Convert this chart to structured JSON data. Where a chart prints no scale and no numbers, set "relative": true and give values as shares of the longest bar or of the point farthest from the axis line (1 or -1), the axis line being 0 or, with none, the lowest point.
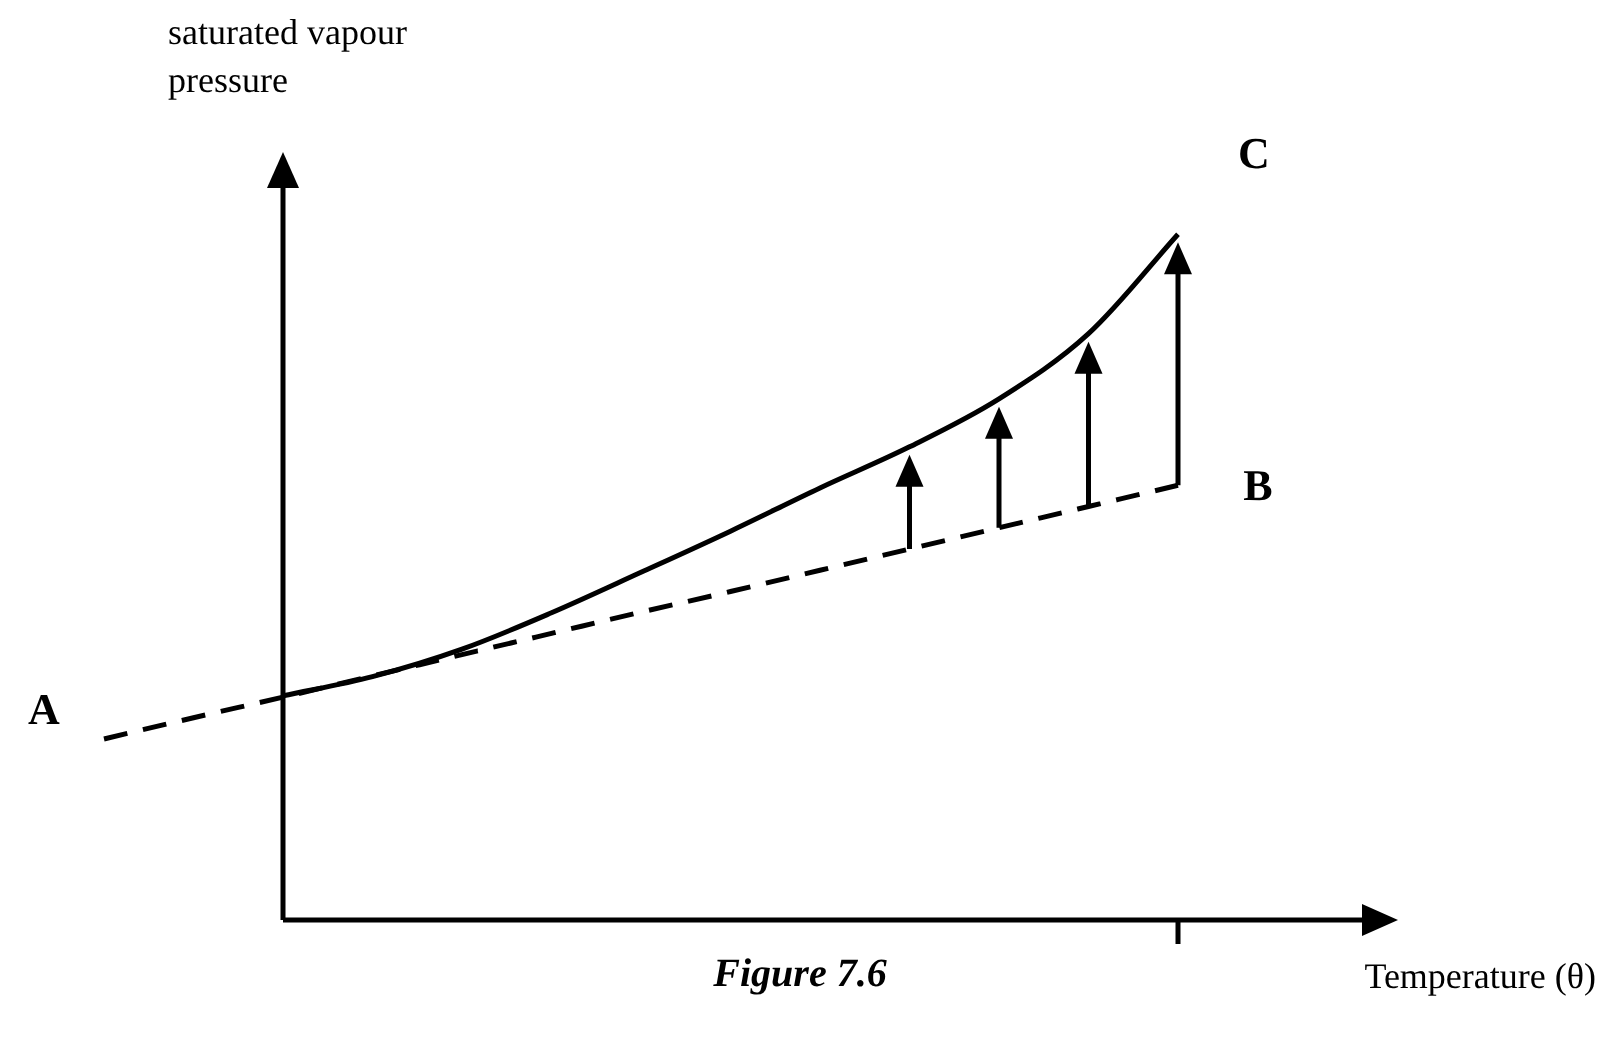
{
  "chart_data": {
    "type": "line",
    "title": "Figure 7.6",
    "xlabel": "Temperature (θ)",
    "ylabel": "saturated vapour pressure",
    "relative": true,
    "categories": [
      null,
      null,
      null,
      null,
      null,
      null,
      null,
      null,
      null,
      null,
      null,
      null,
      null
    ],
    "series": [
      {
        "color": "#000000",
        "line_style": "dashed",
        "values": [
          0.264,
          0.295,
          0.325,
          0.356,
          0.387,
          0.418,
          0.449,
          0.479,
          0.51,
          0.541,
          0.572,
          0.603,
          0.634
        ]
      },
      {
        "color": "#000000",
        "line_style": "solid",
        "values": [
          null,
          null,
          0.327,
          0.355,
          0.395,
          0.448,
          0.507,
          0.567,
          0.63,
          0.69,
          0.76,
          0.855,
          1.0
        ]
      }
    ],
    "annotations": [
      "A",
      "B",
      "C"
    ]
  }
}
